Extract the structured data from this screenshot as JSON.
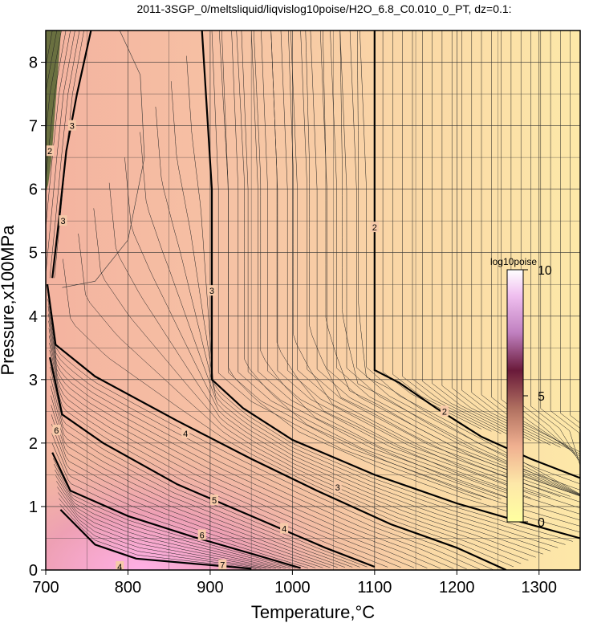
{
  "chart_data": {
    "type": "heatmap",
    "title": "2011-3SGP_0/meltsliquid/liqvislog10poise/H2O_6.8_C0.010_0_PT, dz=0.1:",
    "xlabel": "Temperature,°C",
    "ylabel": "Pressure,x100MPa",
    "xlim": [
      700,
      1350
    ],
    "ylim": [
      0,
      8.5
    ],
    "x_ticks": [
      700,
      800,
      900,
      1000,
      1100,
      1200,
      1300
    ],
    "y_ticks": [
      0,
      1,
      2,
      3,
      4,
      5,
      6,
      7,
      8
    ],
    "grid": true,
    "colorbar": {
      "label": "log10poise",
      "range": [
        0,
        10
      ],
      "ticks": [
        0,
        5,
        10
      ],
      "colors": [
        "#ffffb3",
        "#f0c8a0",
        "#e69a9a",
        "#ffb8ff",
        "#6a1a3a",
        "#ffffff"
      ],
      "position": "inside-right"
    },
    "contour_interval": 0.1,
    "major_contours": [
      {
        "level": "2",
        "points": [
          [
            1100,
            8.5
          ],
          [
            1100,
            3.15
          ],
          [
            1130,
            2.95
          ],
          [
            1175,
            2.55
          ],
          [
            1230,
            2.1
          ],
          [
            1290,
            1.75
          ],
          [
            1350,
            1.45
          ]
        ]
      },
      {
        "level": "3",
        "points": [
          [
            890,
            8.5
          ],
          [
            902,
            6.0
          ],
          [
            902,
            3.0
          ],
          [
            940,
            2.55
          ],
          [
            1000,
            2.05
          ],
          [
            1100,
            1.5
          ],
          [
            1200,
            1.05
          ],
          [
            1280,
            0.75
          ],
          [
            1350,
            0.5
          ]
        ]
      },
      {
        "level": "4",
        "points": [
          [
            702,
            4.5
          ],
          [
            712,
            3.55
          ],
          [
            760,
            3.05
          ],
          [
            860,
            2.35
          ],
          [
            950,
            1.75
          ],
          [
            1030,
            1.25
          ],
          [
            1120,
            0.72
          ],
          [
            1200,
            0.35
          ],
          [
            1260,
            0.0
          ]
        ]
      },
      {
        "level": "5",
        "points": [
          [
            705,
            3.35
          ],
          [
            720,
            2.45
          ],
          [
            770,
            2.0
          ],
          [
            860,
            1.35
          ],
          [
            950,
            0.85
          ],
          [
            1040,
            0.35
          ],
          [
            1100,
            0.05
          ]
        ]
      },
      {
        "level": "6",
        "points": [
          [
            708,
            1.85
          ],
          [
            730,
            1.25
          ],
          [
            800,
            0.85
          ],
          [
            880,
            0.52
          ],
          [
            960,
            0.22
          ],
          [
            1010,
            0.03
          ]
        ]
      },
      {
        "level": "7",
        "points": [
          [
            718,
            0.95
          ],
          [
            760,
            0.4
          ],
          [
            810,
            0.18
          ],
          [
            880,
            0.1
          ],
          [
            950,
            0.02
          ]
        ]
      },
      {
        "level": "3",
        "points": [
          [
            755,
            8.5
          ],
          [
            738,
            7.5
          ],
          [
            725,
            6.6
          ],
          [
            715,
            5.4
          ],
          [
            708,
            4.6
          ]
        ]
      }
    ],
    "contour_labels": [
      {
        "text": "2",
        "x": 1100,
        "y": 5.4
      },
      {
        "text": "2",
        "x": 1185,
        "y": 2.5
      },
      {
        "text": "3",
        "x": 902,
        "y": 4.4
      },
      {
        "text": "3",
        "x": 1055,
        "y": 1.3
      },
      {
        "text": "4",
        "x": 870,
        "y": 2.15
      },
      {
        "text": "4",
        "x": 990,
        "y": 0.65
      },
      {
        "text": "5",
        "x": 905,
        "y": 1.1
      },
      {
        "text": "6",
        "x": 890,
        "y": 0.55
      },
      {
        "text": "6",
        "x": 713,
        "y": 2.2
      },
      {
        "text": "7",
        "x": 915,
        "y": 0.08
      },
      {
        "text": "3",
        "x": 732,
        "y": 7.0
      },
      {
        "text": "3",
        "x": 721,
        "y": 5.5
      },
      {
        "text": "2",
        "x": 705,
        "y": 6.6
      },
      {
        "text": "4",
        "x": 790,
        "y": 0.05
      }
    ]
  }
}
